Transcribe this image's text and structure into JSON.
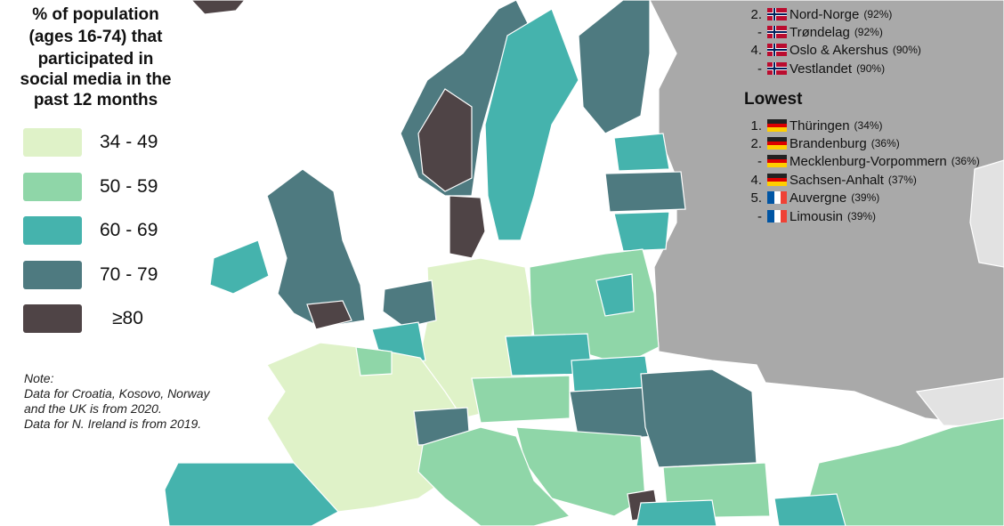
{
  "title": [
    "% of population",
    "(ages 16-74) that",
    "participated in",
    "social media in the",
    "past 12 months"
  ],
  "legend": [
    {
      "label": "34 - 49",
      "color": "#dff2c8"
    },
    {
      "label": "50 - 59",
      "color": "#8fd6a8"
    },
    {
      "label": "60 - 69",
      "color": "#45b3ad"
    },
    {
      "label": "70 - 79",
      "color": "#4e7a80"
    },
    {
      "label": "≥80",
      "color": "#4f4446"
    }
  ],
  "note": [
    "Note:",
    "Data for Croatia, Kosovo, Norway",
    "and the UK is from 2020.",
    "Data for N. Ireland is from 2019."
  ],
  "highest": {
    "items": [
      {
        "rank": "2.",
        "name": "Nord-Norge",
        "value": "(92%)"
      },
      {
        "rank": "-",
        "name": "Trøndelag",
        "value": "(92%)"
      },
      {
        "rank": "4.",
        "name": "Oslo & Akershus",
        "value": "(90%)"
      },
      {
        "rank": "-",
        "name": "Vestlandet",
        "value": "(90%)"
      }
    ]
  },
  "lowest": {
    "title": "Lowest",
    "items": [
      {
        "rank": "1.",
        "name": "Thüringen",
        "value": "(34%)"
      },
      {
        "rank": "2.",
        "name": "Brandenburg",
        "value": "(36%)"
      },
      {
        "rank": "-",
        "name": "Mecklenburg-Vorpommern",
        "value": "(36%)"
      },
      {
        "rank": "4.",
        "name": "Sachsen-Anhalt",
        "value": "(37%)"
      },
      {
        "rank": "5.",
        "name": "Auvergne",
        "value": "(39%)"
      },
      {
        "rank": "-",
        "name": "Limousin",
        "value": "(39%)"
      }
    ]
  }
}
